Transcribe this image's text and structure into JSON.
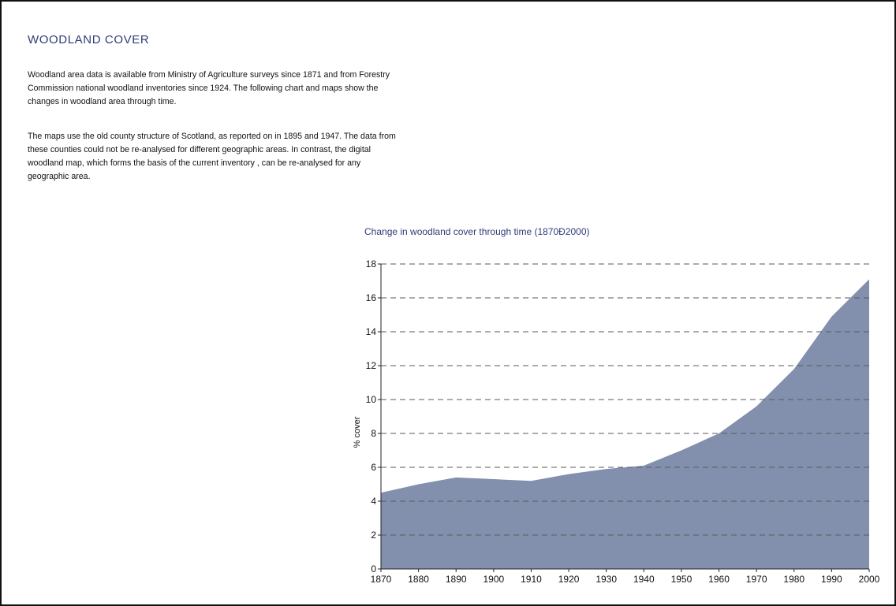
{
  "page": {
    "title": "WOODLAND COVER",
    "paragraphs": [
      "Woodland area data is available from Ministry of Agriculture surveys since 1871 and from Forestry Commission national woodland inventories since 1924. The following chart and maps show the changes in woodland area through time.",
      "The maps use the old county structure of Scotland, as reported on in 1895 and 1947. The data from these counties could not be re-analysed for different geographic areas. In contrast, the digital woodland map, which forms the basis of the current inventory   , can be re-analysed for any geographic area."
    ]
  },
  "chart_data": {
    "type": "area",
    "title": "Change in woodland cover through time (1870Ð2000)",
    "xlabel": "",
    "ylabel": "% cover",
    "xlim": [
      1870,
      2000
    ],
    "ylim": [
      0,
      18
    ],
    "x_ticks": [
      1870,
      1880,
      1890,
      1900,
      1910,
      1920,
      1930,
      1940,
      1950,
      1960,
      1970,
      1980,
      1990,
      2000
    ],
    "y_ticks": [
      0,
      2,
      4,
      6,
      8,
      10,
      12,
      14,
      16,
      18
    ],
    "grid": "horizontal dashed",
    "fill_color": "#8290ae",
    "grid_color": "#5a5a5a",
    "x": [
      1870,
      1880,
      1890,
      1900,
      1910,
      1920,
      1930,
      1940,
      1950,
      1960,
      1970,
      1980,
      1990,
      1995,
      2000
    ],
    "y": [
      4.5,
      5.0,
      5.4,
      5.3,
      5.2,
      5.6,
      5.9,
      6.1,
      7.0,
      8.0,
      9.6,
      11.8,
      14.9,
      16.0,
      17.1
    ]
  }
}
